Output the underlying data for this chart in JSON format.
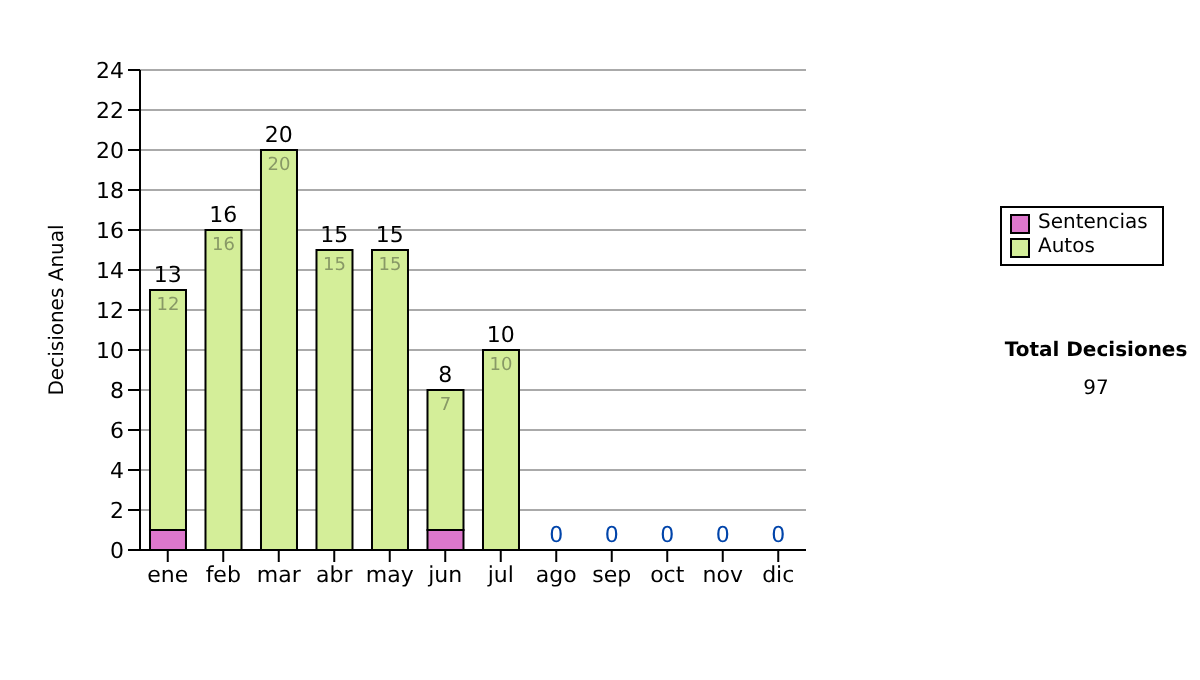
{
  "chart_data": {
    "type": "bar",
    "stacked": true,
    "ylabel": "Decisiones Anual",
    "categories": [
      "ene",
      "feb",
      "mar",
      "abr",
      "may",
      "jun",
      "jul",
      "ago",
      "sep",
      "oct",
      "nov",
      "dic"
    ],
    "series": [
      {
        "name": "Sentencias",
        "color": "#dd77cc",
        "values": [
          1,
          0,
          0,
          0,
          0,
          1,
          0,
          0,
          0,
          0,
          0,
          0
        ]
      },
      {
        "name": "Autos",
        "color": "#d4ee99",
        "values": [
          12,
          16,
          20,
          15,
          15,
          7,
          10,
          0,
          0,
          0,
          0,
          0
        ],
        "value_labels": [
          "12",
          "16",
          "20",
          "15",
          "15",
          "7",
          "10",
          null,
          null,
          null,
          null,
          null
        ]
      }
    ],
    "totals": [
      "13",
      "16",
      "20",
      "15",
      "15",
      "8",
      "10",
      "0",
      "0",
      "0",
      "0",
      "0"
    ],
    "ylim": [
      0,
      24
    ],
    "yticks": [
      0,
      2,
      4,
      6,
      8,
      10,
      12,
      14,
      16,
      18,
      20,
      22,
      24
    ],
    "grid": "y",
    "legend": "right",
    "annotations": [
      "Total Decisiones",
      "97"
    ]
  }
}
